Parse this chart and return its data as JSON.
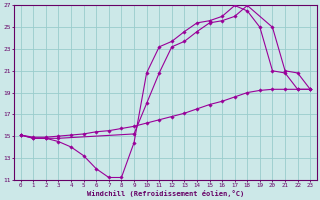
{
  "xlabel": "Windchill (Refroidissement éolien,°C)",
  "bg_color": "#cce8e8",
  "line_color": "#990099",
  "grid_color": "#99cccc",
  "axis_color": "#660066",
  "tick_color": "#660066",
  "xlim": [
    -0.5,
    23.5
  ],
  "ylim": [
    11,
    27
  ],
  "yticks": [
    11,
    13,
    15,
    17,
    19,
    21,
    23,
    25,
    27
  ],
  "xticks": [
    0,
    1,
    2,
    3,
    4,
    5,
    6,
    7,
    8,
    9,
    10,
    11,
    12,
    13,
    14,
    15,
    16,
    17,
    18,
    19,
    20,
    21,
    22,
    23
  ],
  "lines": [
    {
      "x": [
        0,
        1,
        2,
        3,
        4,
        5,
        6,
        7,
        8,
        9,
        10,
        11,
        12,
        13,
        14,
        15,
        16,
        17,
        18,
        19,
        20,
        21,
        22,
        23
      ],
      "y": [
        15.1,
        14.8,
        14.8,
        14.5,
        14.0,
        13.2,
        12.0,
        11.2,
        11.2,
        14.4,
        20.8,
        23.2,
        23.7,
        24.6,
        25.4,
        25.6,
        26.0,
        27.0,
        26.5,
        25.0,
        21.0,
        20.8,
        19.3,
        19.3
      ]
    },
    {
      "x": [
        0,
        1,
        2,
        3,
        9,
        10,
        11,
        12,
        13,
        14,
        15,
        16,
        17,
        18,
        20,
        21,
        22,
        23
      ],
      "y": [
        15.1,
        14.8,
        14.8,
        14.8,
        15.2,
        18.0,
        20.8,
        23.2,
        23.7,
        24.6,
        25.4,
        25.6,
        26.0,
        27.0,
        25.0,
        21.0,
        20.8,
        19.3
      ]
    },
    {
      "x": [
        0,
        1,
        2,
        3,
        4,
        5,
        6,
        7,
        8,
        9,
        10,
        11,
        12,
        13,
        14,
        15,
        16,
        17,
        18,
        19,
        20,
        21,
        22,
        23
      ],
      "y": [
        15.1,
        14.9,
        14.9,
        15.0,
        15.1,
        15.2,
        15.4,
        15.5,
        15.7,
        15.9,
        16.2,
        16.5,
        16.8,
        17.1,
        17.5,
        17.9,
        18.2,
        18.6,
        19.0,
        19.2,
        19.3,
        19.3,
        19.3,
        19.3
      ]
    }
  ]
}
